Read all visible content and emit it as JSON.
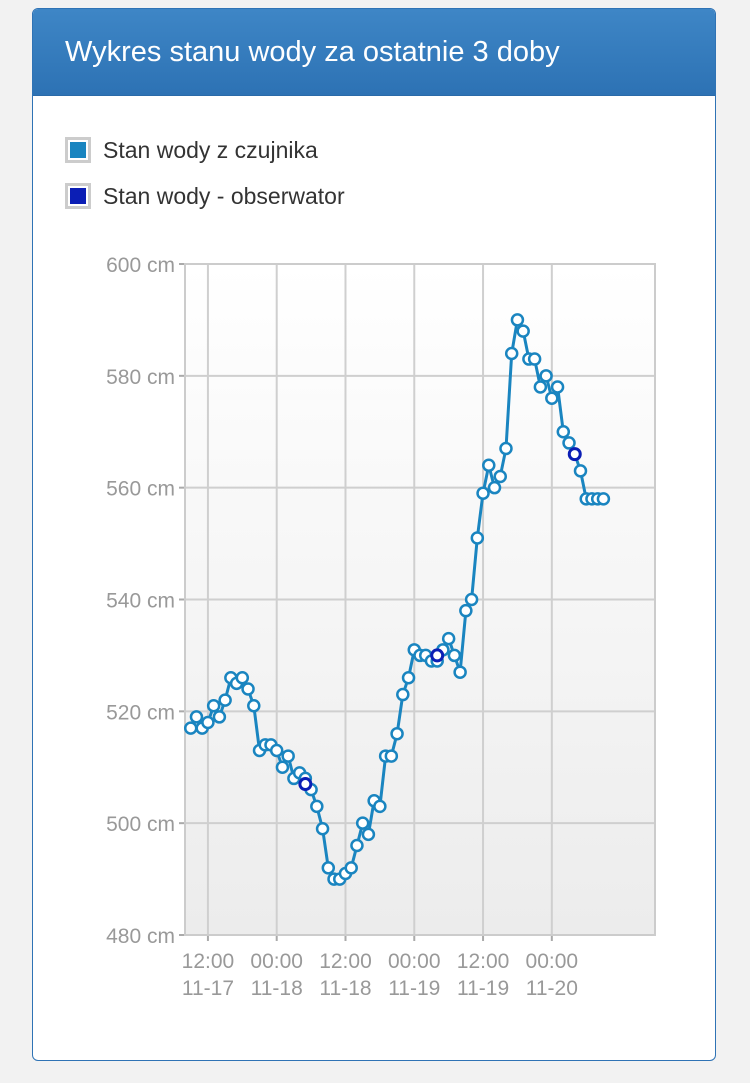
{
  "panel": {
    "title": "Wykres stanu wody za ostatnie 3 doby"
  },
  "legend": [
    {
      "label": "Stan wody z czujnika",
      "color": "#1a85c0"
    },
    {
      "label": "Stan wody - obserwator",
      "color": "#0b1eb5"
    }
  ],
  "chart_data": {
    "type": "line",
    "title": "Wykres stanu wody za ostatnie 3 doby",
    "xlabel": "",
    "ylabel": "",
    "y_unit": "cm",
    "ylim": [
      480,
      600
    ],
    "y_ticks": [
      {
        "value": 600,
        "label": "600 cm"
      },
      {
        "value": 580,
        "label": "580 cm"
      },
      {
        "value": 560,
        "label": "560 cm"
      },
      {
        "value": 540,
        "label": "540 cm"
      },
      {
        "value": 520,
        "label": "520 cm"
      },
      {
        "value": 500,
        "label": "500 cm"
      },
      {
        "value": 480,
        "label": "480 cm"
      }
    ],
    "x_range": [
      "2023-11-17 08:00",
      "2023-11-20 18:00"
    ],
    "x_ticks": [
      {
        "time": "11-17 12:00",
        "line1": "12:00",
        "line2": "11-17"
      },
      {
        "time": "11-18 00:00",
        "line1": "00:00",
        "line2": "11-18"
      },
      {
        "time": "11-18 12:00",
        "line1": "12:00",
        "line2": "11-18"
      },
      {
        "time": "11-19 00:00",
        "line1": "00:00",
        "line2": "11-19"
      },
      {
        "time": "11-19 12:00",
        "line1": "12:00",
        "line2": "11-19"
      },
      {
        "time": "11-20 00:00",
        "line1": "00:00",
        "line2": "11-20"
      }
    ],
    "grid": true,
    "legend_position": "top-left",
    "series": [
      {
        "name": "Stan wody z czujnika",
        "color": "#1a85c0",
        "points": [
          [
            "11-17 09:00",
            517
          ],
          [
            "11-17 10:00",
            519
          ],
          [
            "11-17 11:00",
            517
          ],
          [
            "11-17 12:00",
            518
          ],
          [
            "11-17 13:00",
            521
          ],
          [
            "11-17 14:00",
            519
          ],
          [
            "11-17 15:00",
            522
          ],
          [
            "11-17 16:00",
            526
          ],
          [
            "11-17 17:00",
            525
          ],
          [
            "11-17 18:00",
            526
          ],
          [
            "11-17 19:00",
            524
          ],
          [
            "11-17 20:00",
            521
          ],
          [
            "11-17 21:00",
            513
          ],
          [
            "11-17 22:00",
            514
          ],
          [
            "11-17 23:00",
            514
          ],
          [
            "11-18 00:00",
            513
          ],
          [
            "11-18 01:00",
            510
          ],
          [
            "11-18 02:00",
            512
          ],
          [
            "11-18 03:00",
            508
          ],
          [
            "11-18 04:00",
            509
          ],
          [
            "11-18 05:00",
            508
          ],
          [
            "11-18 06:00",
            506
          ],
          [
            "11-18 07:00",
            503
          ],
          [
            "11-18 08:00",
            499
          ],
          [
            "11-18 09:00",
            492
          ],
          [
            "11-18 10:00",
            490
          ],
          [
            "11-18 11:00",
            490
          ],
          [
            "11-18 12:00",
            491
          ],
          [
            "11-18 13:00",
            492
          ],
          [
            "11-18 14:00",
            496
          ],
          [
            "11-18 15:00",
            500
          ],
          [
            "11-18 16:00",
            498
          ],
          [
            "11-18 17:00",
            504
          ],
          [
            "11-18 18:00",
            503
          ],
          [
            "11-18 19:00",
            512
          ],
          [
            "11-18 20:00",
            512
          ],
          [
            "11-18 21:00",
            516
          ],
          [
            "11-18 22:00",
            523
          ],
          [
            "11-18 23:00",
            526
          ],
          [
            "11-19 00:00",
            531
          ],
          [
            "11-19 01:00",
            530
          ],
          [
            "11-19 02:00",
            530
          ],
          [
            "11-19 03:00",
            529
          ],
          [
            "11-19 04:00",
            529
          ],
          [
            "11-19 05:00",
            531
          ],
          [
            "11-19 06:00",
            533
          ],
          [
            "11-19 07:00",
            530
          ],
          [
            "11-19 08:00",
            527
          ],
          [
            "11-19 09:00",
            538
          ],
          [
            "11-19 10:00",
            540
          ],
          [
            "11-19 11:00",
            551
          ],
          [
            "11-19 12:00",
            559
          ],
          [
            "11-19 13:00",
            564
          ],
          [
            "11-19 14:00",
            560
          ],
          [
            "11-19 15:00",
            562
          ],
          [
            "11-19 16:00",
            567
          ],
          [
            "11-19 17:00",
            584
          ],
          [
            "11-19 18:00",
            590
          ],
          [
            "11-19 19:00",
            588
          ],
          [
            "11-19 20:00",
            583
          ],
          [
            "11-19 21:00",
            583
          ],
          [
            "11-19 22:00",
            578
          ],
          [
            "11-19 23:00",
            580
          ],
          [
            "11-20 00:00",
            576
          ],
          [
            "11-20 01:00",
            578
          ],
          [
            "11-20 02:00",
            570
          ],
          [
            "11-20 03:00",
            568
          ],
          [
            "11-20 04:00",
            566
          ],
          [
            "11-20 05:00",
            563
          ],
          [
            "11-20 06:00",
            558
          ],
          [
            "11-20 07:00",
            558
          ],
          [
            "11-20 08:00",
            558
          ],
          [
            "11-20 09:00",
            558
          ]
        ]
      },
      {
        "name": "Stan wody - obserwator",
        "color": "#0b1eb5",
        "points": [
          [
            "11-18 05:00",
            507
          ],
          [
            "11-19 04:00",
            530
          ],
          [
            "11-20 04:00",
            566
          ]
        ]
      }
    ]
  }
}
